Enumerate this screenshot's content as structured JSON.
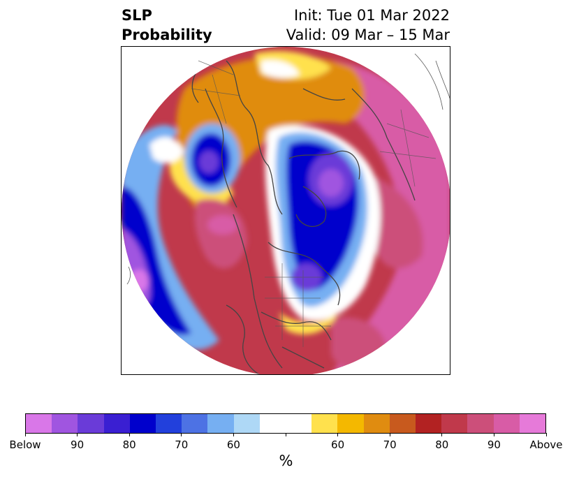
{
  "title": {
    "left_line1": "SLP",
    "left_line2": "Probability",
    "right_line1": "Init: Tue 01 Mar 2022",
    "right_line2": "Valid: 09 Mar – 15 Mar"
  },
  "colorbar": {
    "unit_label": "%",
    "colors": [
      "#d977e8",
      "#a055e0",
      "#6a3bd8",
      "#3a1fd2",
      "#0000cc",
      "#2240dc",
      "#4d72e4",
      "#76aff2",
      "#aed8f6",
      "#ffffff",
      "#ffffff",
      "#ffe14d",
      "#f4b800",
      "#e08c10",
      "#c85a1e",
      "#b22222",
      "#c0394b",
      "#cc4f7a",
      "#d85ca6",
      "#e67ad9"
    ],
    "tick_labels": [
      "Below",
      "90",
      "80",
      "70",
      "60",
      "",
      "60",
      "70",
      "80",
      "90",
      "Above"
    ]
  },
  "colors": {
    "below_strong": "#a055e0",
    "below_mid": "#0000cc",
    "below_weak": "#aed8f6",
    "above_weak": "#ffe14d",
    "above_mid": "#e08c10",
    "above_strong": "#b22222",
    "above_max": "#d85ca6",
    "coastline": "#444444"
  }
}
